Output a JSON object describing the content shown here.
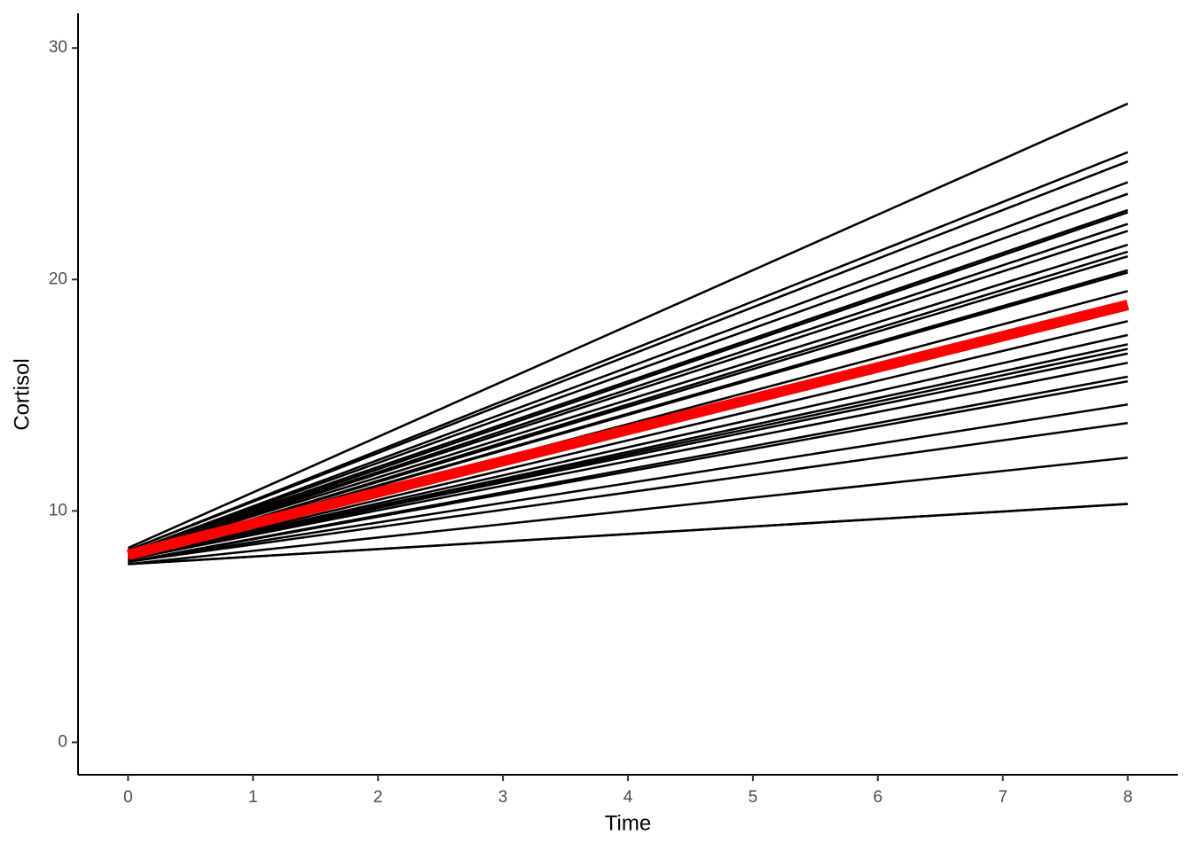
{
  "chart_data": {
    "type": "line",
    "x_label": "Time",
    "y_label": "Cortisol",
    "x": [
      0,
      8
    ],
    "xlim": [
      -0.4,
      8.4
    ],
    "xticks": [
      0,
      1,
      2,
      3,
      4,
      5,
      6,
      7,
      8
    ],
    "ylim": [
      -1.4,
      31.5
    ],
    "yticks": [
      0,
      10,
      20,
      30
    ],
    "grid": false,
    "series": [
      {
        "color": "#000000",
        "linewidth": 2.5,
        "values": [
          8.4,
          27.6
        ]
      },
      {
        "color": "#000000",
        "linewidth": 2.5,
        "values": [
          8.3,
          25.5
        ]
      },
      {
        "color": "#000000",
        "linewidth": 2.5,
        "values": [
          8.3,
          25.1
        ]
      },
      {
        "color": "#000000",
        "linewidth": 2.5,
        "values": [
          8.2,
          24.2
        ]
      },
      {
        "color": "#000000",
        "linewidth": 2.5,
        "values": [
          8.2,
          23.7
        ]
      },
      {
        "color": "#000000",
        "linewidth": 2.5,
        "values": [
          8.2,
          23.0
        ]
      },
      {
        "color": "#000000",
        "linewidth": 2.5,
        "values": [
          8.1,
          22.9
        ]
      },
      {
        "color": "#000000",
        "linewidth": 2.5,
        "values": [
          8.1,
          22.4
        ]
      },
      {
        "color": "#000000",
        "linewidth": 2.5,
        "values": [
          8.1,
          22.1
        ]
      },
      {
        "color": "#000000",
        "linewidth": 2.5,
        "values": [
          8.1,
          21.5
        ]
      },
      {
        "color": "#000000",
        "linewidth": 2.5,
        "values": [
          8.0,
          21.2
        ]
      },
      {
        "color": "#000000",
        "linewidth": 2.5,
        "values": [
          8.0,
          21.0
        ]
      },
      {
        "color": "#000000",
        "linewidth": 2.5,
        "values": [
          8.0,
          20.4
        ]
      },
      {
        "color": "#000000",
        "linewidth": 2.5,
        "values": [
          8.0,
          20.3
        ]
      },
      {
        "color": "#000000",
        "linewidth": 2.5,
        "values": [
          8.0,
          19.5
        ]
      },
      {
        "color": "#000000",
        "linewidth": 2.5,
        "values": [
          7.9,
          18.2
        ]
      },
      {
        "color": "#000000",
        "linewidth": 2.5,
        "values": [
          7.9,
          17.6
        ]
      },
      {
        "color": "#000000",
        "linewidth": 2.5,
        "values": [
          7.9,
          17.2
        ]
      },
      {
        "color": "#000000",
        "linewidth": 2.5,
        "values": [
          7.9,
          17.0
        ]
      },
      {
        "color": "#000000",
        "linewidth": 2.5,
        "values": [
          7.9,
          16.8
        ]
      },
      {
        "color": "#000000",
        "linewidth": 2.5,
        "values": [
          7.9,
          16.4
        ]
      },
      {
        "color": "#000000",
        "linewidth": 2.5,
        "values": [
          7.8,
          15.8
        ]
      },
      {
        "color": "#000000",
        "linewidth": 2.5,
        "values": [
          7.8,
          15.6
        ]
      },
      {
        "color": "#000000",
        "linewidth": 2.5,
        "values": [
          7.8,
          14.6
        ]
      },
      {
        "color": "#000000",
        "linewidth": 2.5,
        "values": [
          7.8,
          13.8
        ]
      },
      {
        "color": "#000000",
        "linewidth": 2.5,
        "values": [
          7.7,
          12.3
        ]
      },
      {
        "color": "#000000",
        "linewidth": 2.5,
        "values": [
          7.7,
          10.3
        ]
      },
      {
        "color": "#000000",
        "linewidth": 2.5,
        "values": [
          7.7,
          10.3
        ]
      },
      {
        "color": "#ff0000",
        "linewidth": 12,
        "values": [
          8.1,
          18.9
        ]
      }
    ]
  }
}
